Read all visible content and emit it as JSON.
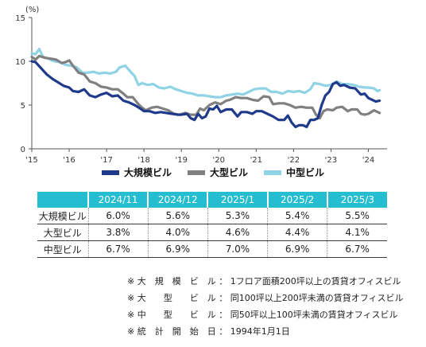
{
  "chart_data": {
    "type": "line",
    "unit_label": "(%)",
    "ylim": [
      0,
      15
    ],
    "yticks": [
      "0",
      "5",
      "10",
      "15"
    ],
    "xlim": [
      2015,
      2024.5
    ],
    "xticks": [
      {
        "x": 2015,
        "label": "'15"
      },
      {
        "x": 2016,
        "label": "'16"
      },
      {
        "x": 2017,
        "label": "'17"
      },
      {
        "x": 2018,
        "label": "'18"
      },
      {
        "x": 2019,
        "label": "'19"
      },
      {
        "x": 2020,
        "label": "'20"
      },
      {
        "x": 2021,
        "label": "'21"
      },
      {
        "x": 2022,
        "label": "'22"
      },
      {
        "x": 2023,
        "label": "'23"
      },
      {
        "x": 2024,
        "label": "'24"
      }
    ],
    "grid": false,
    "legend_position": "bottom",
    "series": [
      {
        "name": "大規模ビル",
        "color": "#1f3a8a",
        "points": [
          [
            2015.0,
            10.0
          ],
          [
            2015.1,
            9.9
          ],
          [
            2015.25,
            9.2
          ],
          [
            2015.4,
            8.5
          ],
          [
            2015.55,
            8.0
          ],
          [
            2015.7,
            7.6
          ],
          [
            2015.85,
            7.2
          ],
          [
            2016.0,
            7.0
          ],
          [
            2016.1,
            6.6
          ],
          [
            2016.25,
            6.5
          ],
          [
            2016.4,
            6.8
          ],
          [
            2016.55,
            6.1
          ],
          [
            2016.7,
            5.9
          ],
          [
            2016.85,
            6.2
          ],
          [
            2017.0,
            6.4
          ],
          [
            2017.15,
            6.0
          ],
          [
            2017.3,
            6.1
          ],
          [
            2017.45,
            5.5
          ],
          [
            2017.6,
            5.3
          ],
          [
            2017.75,
            5.0
          ],
          [
            2017.9,
            4.6
          ],
          [
            2018.0,
            4.3
          ],
          [
            2018.15,
            4.3
          ],
          [
            2018.3,
            4.1
          ],
          [
            2018.45,
            4.2
          ],
          [
            2018.6,
            4.1
          ],
          [
            2018.75,
            4.0
          ],
          [
            2018.9,
            3.9
          ],
          [
            2019.0,
            3.9
          ],
          [
            2019.15,
            4.0
          ],
          [
            2019.25,
            3.5
          ],
          [
            2019.35,
            3.3
          ],
          [
            2019.45,
            4.0
          ],
          [
            2019.55,
            3.5
          ],
          [
            2019.65,
            3.7
          ],
          [
            2019.75,
            4.6
          ],
          [
            2019.85,
            4.5
          ],
          [
            2019.95,
            4.9
          ],
          [
            2020.05,
            4.2
          ],
          [
            2020.2,
            4.5
          ],
          [
            2020.35,
            4.5
          ],
          [
            2020.5,
            3.7
          ],
          [
            2020.6,
            4.2
          ],
          [
            2020.75,
            4.2
          ],
          [
            2020.9,
            4.0
          ],
          [
            2021.0,
            4.3
          ],
          [
            2021.15,
            4.3
          ],
          [
            2021.3,
            4.0
          ],
          [
            2021.45,
            3.7
          ],
          [
            2021.6,
            3.3
          ],
          [
            2021.75,
            3.3
          ],
          [
            2021.85,
            3.8
          ],
          [
            2021.95,
            3.0
          ],
          [
            2022.05,
            2.5
          ],
          [
            2022.15,
            2.7
          ],
          [
            2022.25,
            2.7
          ],
          [
            2022.35,
            2.5
          ],
          [
            2022.45,
            3.3
          ],
          [
            2022.55,
            3.3
          ],
          [
            2022.65,
            3.5
          ],
          [
            2022.75,
            5.0
          ],
          [
            2022.85,
            6.1
          ],
          [
            2022.95,
            6.5
          ],
          [
            2023.05,
            7.4
          ],
          [
            2023.15,
            7.6
          ],
          [
            2023.25,
            7.2
          ],
          [
            2023.35,
            7.3
          ],
          [
            2023.5,
            7.0
          ],
          [
            2023.65,
            6.9
          ],
          [
            2023.8,
            6.2
          ],
          [
            2023.9,
            6.3
          ],
          [
            2024.0,
            5.8
          ],
          [
            2024.1,
            5.6
          ],
          [
            2024.2,
            5.4
          ],
          [
            2024.3,
            5.5
          ]
        ]
      },
      {
        "name": "大型ビル",
        "color": "#808080",
        "points": [
          [
            2015.0,
            10.5
          ],
          [
            2015.1,
            10.2
          ],
          [
            2015.2,
            10.6
          ],
          [
            2015.35,
            10.4
          ],
          [
            2015.5,
            10.3
          ],
          [
            2015.65,
            10.2
          ],
          [
            2015.8,
            9.8
          ],
          [
            2015.9,
            9.9
          ],
          [
            2016.0,
            10.1
          ],
          [
            2016.1,
            9.5
          ],
          [
            2016.25,
            8.7
          ],
          [
            2016.4,
            8.5
          ],
          [
            2016.55,
            7.7
          ],
          [
            2016.7,
            7.5
          ],
          [
            2016.85,
            7.1
          ],
          [
            2017.0,
            7.0
          ],
          [
            2017.15,
            6.8
          ],
          [
            2017.3,
            6.8
          ],
          [
            2017.45,
            6.3
          ],
          [
            2017.55,
            5.9
          ],
          [
            2017.7,
            5.9
          ],
          [
            2017.85,
            5.1
          ],
          [
            2017.95,
            4.7
          ],
          [
            2018.05,
            4.4
          ],
          [
            2018.2,
            4.7
          ],
          [
            2018.35,
            4.8
          ],
          [
            2018.5,
            4.6
          ],
          [
            2018.65,
            4.4
          ],
          [
            2018.8,
            4.0
          ],
          [
            2018.95,
            3.9
          ],
          [
            2019.1,
            4.1
          ],
          [
            2019.25,
            3.9
          ],
          [
            2019.4,
            3.9
          ],
          [
            2019.5,
            4.6
          ],
          [
            2019.6,
            4.4
          ],
          [
            2019.75,
            5.0
          ],
          [
            2019.9,
            5.3
          ],
          [
            2020.05,
            5.1
          ],
          [
            2020.2,
            5.5
          ],
          [
            2020.3,
            5.6
          ],
          [
            2020.45,
            5.9
          ],
          [
            2020.6,
            5.8
          ],
          [
            2020.75,
            5.8
          ],
          [
            2020.9,
            5.6
          ],
          [
            2021.05,
            5.5
          ],
          [
            2021.2,
            6.0
          ],
          [
            2021.35,
            5.9
          ],
          [
            2021.45,
            5.1
          ],
          [
            2021.6,
            5.2
          ],
          [
            2021.75,
            5.2
          ],
          [
            2021.9,
            5.0
          ],
          [
            2022.05,
            4.7
          ],
          [
            2022.2,
            4.8
          ],
          [
            2022.35,
            4.7
          ],
          [
            2022.5,
            4.7
          ],
          [
            2022.6,
            3.9
          ],
          [
            2022.7,
            3.5
          ],
          [
            2022.8,
            4.3
          ],
          [
            2022.9,
            4.5
          ],
          [
            2023.05,
            4.4
          ],
          [
            2023.15,
            4.7
          ],
          [
            2023.3,
            4.8
          ],
          [
            2023.45,
            4.3
          ],
          [
            2023.55,
            4.5
          ],
          [
            2023.7,
            4.5
          ],
          [
            2023.8,
            4.0
          ],
          [
            2023.9,
            3.9
          ],
          [
            2024.0,
            4.0
          ],
          [
            2024.15,
            4.4
          ],
          [
            2024.3,
            4.1
          ]
        ]
      },
      {
        "name": "中型ビル",
        "color": "#8fd3e5",
        "points": [
          [
            2015.0,
            10.9
          ],
          [
            2015.1,
            10.8
          ],
          [
            2015.2,
            11.4
          ],
          [
            2015.3,
            10.5
          ],
          [
            2015.45,
            10.3
          ],
          [
            2015.6,
            10.0
          ],
          [
            2015.75,
            9.9
          ],
          [
            2015.9,
            9.6
          ],
          [
            2016.05,
            9.5
          ],
          [
            2016.2,
            9.3
          ],
          [
            2016.35,
            8.7
          ],
          [
            2016.5,
            8.7
          ],
          [
            2016.65,
            8.8
          ],
          [
            2016.8,
            8.6
          ],
          [
            2016.95,
            8.7
          ],
          [
            2017.1,
            8.6
          ],
          [
            2017.25,
            8.8
          ],
          [
            2017.35,
            9.3
          ],
          [
            2017.5,
            9.5
          ],
          [
            2017.6,
            9.0
          ],
          [
            2017.75,
            8.3
          ],
          [
            2017.85,
            7.3
          ],
          [
            2017.95,
            7.5
          ],
          [
            2018.1,
            7.3
          ],
          [
            2018.25,
            7.4
          ],
          [
            2018.4,
            7.0
          ],
          [
            2018.55,
            6.9
          ],
          [
            2018.7,
            7.1
          ],
          [
            2018.85,
            6.8
          ],
          [
            2019.0,
            6.6
          ],
          [
            2019.15,
            6.4
          ],
          [
            2019.3,
            6.3
          ],
          [
            2019.45,
            6.1
          ],
          [
            2019.6,
            6.1
          ],
          [
            2019.75,
            6.0
          ],
          [
            2019.9,
            5.9
          ],
          [
            2020.05,
            5.9
          ],
          [
            2020.2,
            6.1
          ],
          [
            2020.35,
            6.2
          ],
          [
            2020.5,
            6.3
          ],
          [
            2020.65,
            6.2
          ],
          [
            2020.8,
            6.5
          ],
          [
            2020.95,
            6.8
          ],
          [
            2021.1,
            6.9
          ],
          [
            2021.25,
            6.9
          ],
          [
            2021.4,
            6.5
          ],
          [
            2021.55,
            6.5
          ],
          [
            2021.7,
            6.3
          ],
          [
            2021.85,
            6.6
          ],
          [
            2022.0,
            6.5
          ],
          [
            2022.15,
            6.6
          ],
          [
            2022.3,
            6.4
          ],
          [
            2022.45,
            6.8
          ],
          [
            2022.55,
            7.5
          ],
          [
            2022.7,
            7.4
          ],
          [
            2022.85,
            7.2
          ],
          [
            2023.0,
            7.3
          ],
          [
            2023.15,
            7.7
          ],
          [
            2023.3,
            7.4
          ],
          [
            2023.45,
            7.4
          ],
          [
            2023.6,
            7.3
          ],
          [
            2023.75,
            7.1
          ],
          [
            2023.9,
            7.0
          ],
          [
            2024.0,
            7.0
          ],
          [
            2024.15,
            6.9
          ],
          [
            2024.25,
            6.6
          ],
          [
            2024.3,
            6.7
          ]
        ]
      }
    ]
  },
  "table": {
    "headers": [
      "",
      "2024/11",
      "2024/12",
      "2025/1",
      "2025/2",
      "2025/3"
    ],
    "rows": [
      {
        "label": "大規模ビル",
        "values": [
          "6.0%",
          "5.6%",
          "5.3%",
          "5.4%",
          "5.5%"
        ]
      },
      {
        "label": "大型ビル",
        "values": [
          "3.8%",
          "4.0%",
          "4.6%",
          "4.4%",
          "4.1%"
        ]
      },
      {
        "label": "中型ビル",
        "values": [
          "6.7%",
          "6.9%",
          "7.0%",
          "6.9%",
          "6.7%"
        ]
      }
    ]
  },
  "notes": [
    "※ 大　規　模　ビ　ル ： 1フロア面積200坪以上の賃貸オフィスビル",
    "※ 大　　型　　ビ　ル ： 同100坪以上200坪未満の賃貸オフィスビル",
    "※ 中　　型　　ビ　ル ： 同50坪以上100坪未満の賃貸オフィスビル",
    "※ 統　計　開　始　日 ： 1994年1月1日"
  ]
}
